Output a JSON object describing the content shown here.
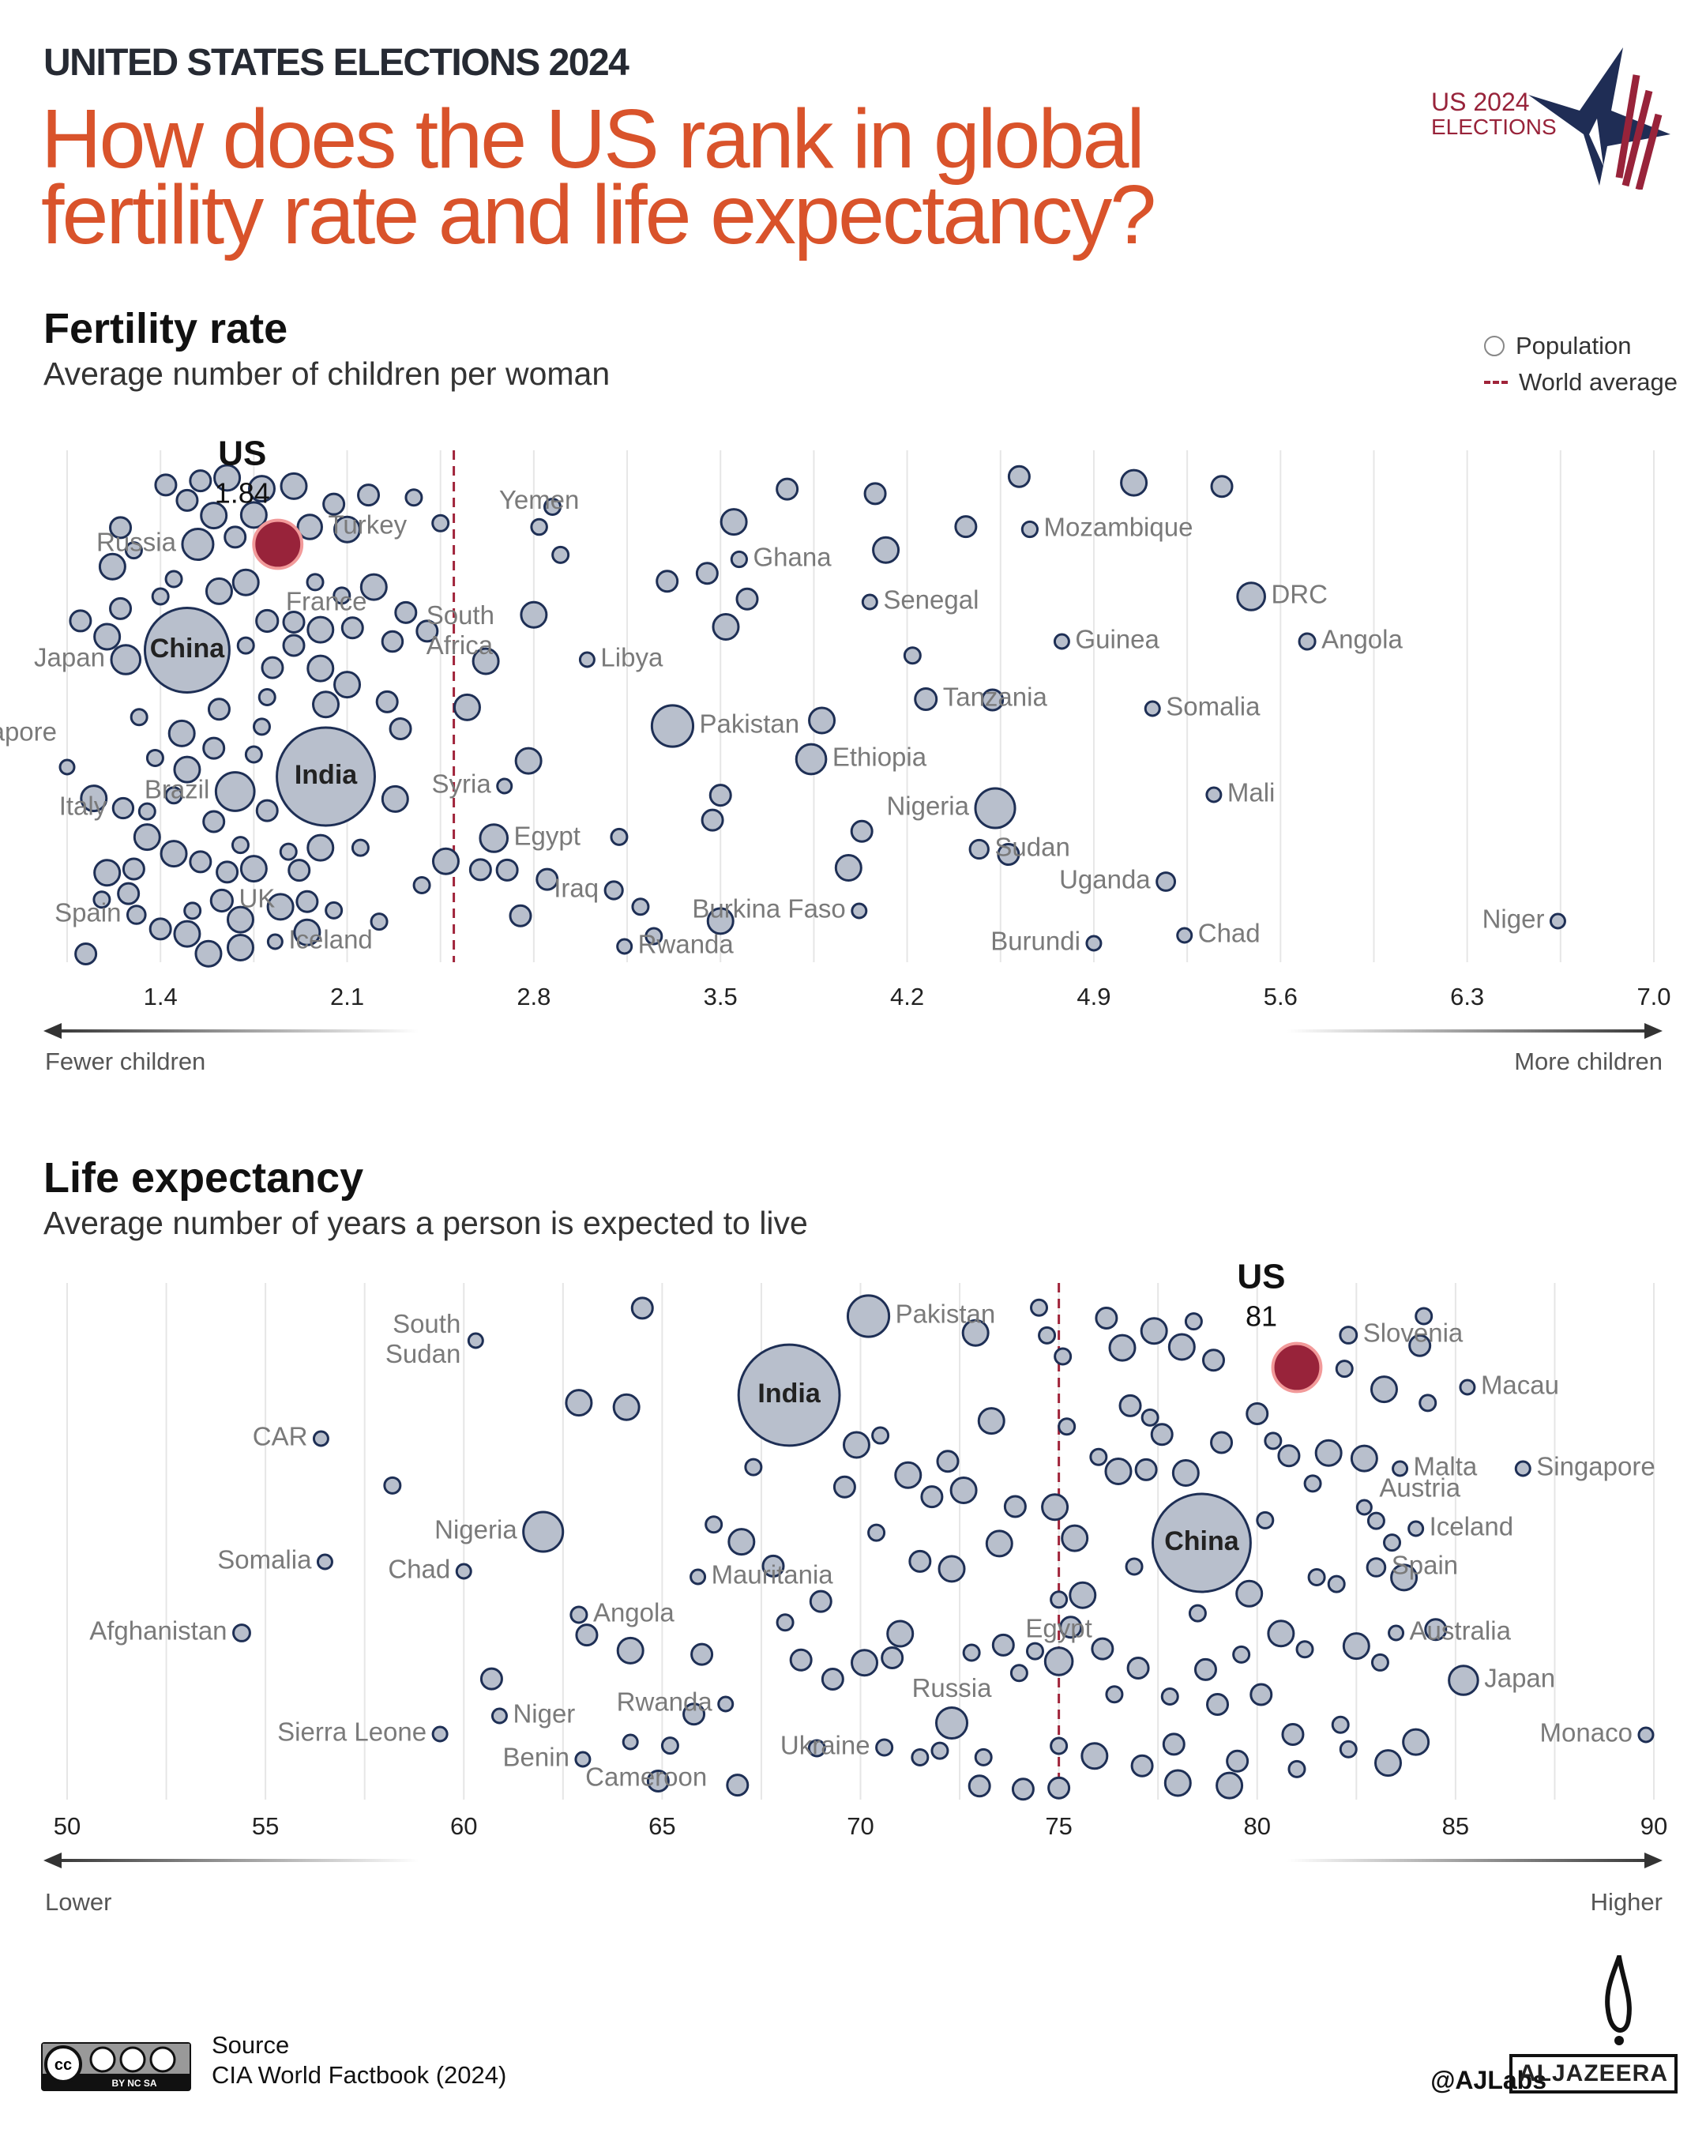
{
  "header": {
    "kicker": "UNITED STATES ELECTIONS 2024",
    "title_line1": "How does the US rank in global",
    "title_line2": "fertility rate and life expectancy?",
    "logo_text_line1": "US 2024",
    "logo_text_line2": "ELECTIONS"
  },
  "legend": {
    "population": "Population",
    "world_average": "World average"
  },
  "colors": {
    "title": "#d9532b",
    "dot_fill": "#b8bfcc",
    "dot_stroke": "#1e2f55",
    "us_fill": "#98233a",
    "world_average": "#a0243a"
  },
  "chart_data": [
    {
      "type": "scatter",
      "title": "Fertility rate",
      "subtitle": "Average number of children per woman",
      "x_ticks": [
        "1.4",
        "2.1",
        "2.8",
        "3.5",
        "4.2",
        "4.9",
        "5.6",
        "6.3",
        "7.0"
      ],
      "xlim": [
        1.05,
        7.0
      ],
      "world_average": 2.5,
      "axis_left_label": "Fewer children",
      "axis_right_label": "More children",
      "highlight": {
        "name": "US",
        "value": 1.84,
        "value_label": "1.84",
        "pop": 340
      },
      "labeled": [
        {
          "name": "Russia",
          "value": 1.54,
          "pop": 140
        },
        {
          "name": "Turkey",
          "value": 1.96,
          "pop": 85
        },
        {
          "name": "Yemen",
          "value": 2.82,
          "pop": 35
        },
        {
          "name": "Ghana",
          "value": 3.57,
          "pop": 34
        },
        {
          "name": "Mozambique",
          "value": 4.66,
          "pop": 34
        },
        {
          "name": "Senegal",
          "value": 4.06,
          "pop": 18
        },
        {
          "name": "DRC",
          "value": 5.49,
          "pop": 110
        },
        {
          "name": "Angola",
          "value": 5.7,
          "pop": 37
        },
        {
          "name": "Guinea",
          "value": 4.78,
          "pop": 14
        },
        {
          "name": "Libya",
          "value": 3.0,
          "pop": 7
        },
        {
          "name": "Tanzania",
          "value": 4.27,
          "pop": 67
        },
        {
          "name": "Somalia",
          "value": 5.12,
          "pop": 18
        },
        {
          "name": "Pakistan",
          "value": 3.32,
          "pop": 250
        },
        {
          "name": "Ethiopia",
          "value": 3.84,
          "pop": 130
        },
        {
          "name": "Mali",
          "value": 5.35,
          "pop": 22
        },
        {
          "name": "Nigeria",
          "value": 4.53,
          "pop": 230
        },
        {
          "name": "Sudan",
          "value": 4.47,
          "pop": 50
        },
        {
          "name": "Uganda",
          "value": 5.17,
          "pop": 48
        },
        {
          "name": "Chad",
          "value": 5.24,
          "pop": 19
        },
        {
          "name": "Burundi",
          "value": 4.9,
          "pop": 13
        },
        {
          "name": "Niger",
          "value": 6.64,
          "pop": 27
        },
        {
          "name": "Burkina Faso",
          "value": 4.02,
          "pop": 23
        },
        {
          "name": "Rwanda",
          "value": 3.14,
          "pop": 14
        },
        {
          "name": "Iraq",
          "value": 3.1,
          "pop": 45
        },
        {
          "name": "Egypt",
          "value": 2.65,
          "pop": 110
        },
        {
          "name": "Syria",
          "value": 2.69,
          "pop": 23
        },
        {
          "name": "South Africa",
          "value": 2.27,
          "pop": 60
        },
        {
          "name": "France",
          "value": 1.8,
          "pop": 68
        },
        {
          "name": "China",
          "value": 1.5,
          "pop": 1050
        },
        {
          "name": "India",
          "value": 2.02,
          "pop": 1410
        },
        {
          "name": "Japan",
          "value": 1.27,
          "pop": 123
        },
        {
          "name": "Singapore",
          "value": 1.05,
          "pop": 6
        },
        {
          "name": "Brazil",
          "value": 1.68,
          "pop": 218
        },
        {
          "name": "Italy",
          "value": 1.26,
          "pop": 59
        },
        {
          "name": "Spain",
          "value": 1.31,
          "pop": 47
        },
        {
          "name": "UK",
          "value": 1.63,
          "pop": 68
        },
        {
          "name": "Iceland",
          "value": 1.83,
          "pop": 1
        }
      ],
      "others": [
        1.1,
        1.12,
        1.15,
        1.18,
        1.2,
        1.2,
        1.22,
        1.25,
        1.25,
        1.28,
        1.3,
        1.3,
        1.32,
        1.35,
        1.35,
        1.38,
        1.4,
        1.4,
        1.42,
        1.45,
        1.45,
        1.48,
        1.5,
        1.5,
        1.52,
        1.55,
        1.55,
        1.58,
        1.6,
        1.6,
        1.62,
        1.62,
        1.65,
        1.65,
        1.68,
        1.7,
        1.7,
        1.72,
        1.72,
        1.75,
        1.75,
        1.78,
        1.78,
        1.8,
        1.8,
        1.82,
        1.85,
        1.88,
        1.9,
        1.9,
        1.92,
        1.95,
        1.95,
        1.98,
        2.0,
        2.0,
        2.02,
        2.05,
        2.05,
        2.08,
        2.1,
        2.1,
        2.12,
        2.15,
        2.18,
        2.2,
        2.22,
        2.25,
        2.28,
        2.3,
        2.32,
        2.35,
        2.38,
        2.4,
        2.45,
        2.47,
        1.6,
        1.7,
        1.9,
        2.0,
        1.5,
        1.45,
        1.75,
        2.55,
        2.6,
        2.62,
        2.7,
        2.75,
        2.78,
        2.8,
        2.85,
        2.87,
        2.9,
        3.12,
        3.2,
        3.25,
        3.3,
        3.45,
        3.47,
        3.5,
        3.5,
        3.52,
        3.55,
        3.6,
        3.75,
        3.88,
        3.98,
        4.03,
        4.08,
        4.12,
        4.22,
        4.42,
        4.52,
        4.58,
        4.62,
        5.05,
        5.38
      ]
    },
    {
      "type": "scatter",
      "title": "Life expectancy",
      "subtitle": "Average number of years a person is expected to live",
      "x_ticks": [
        "50",
        "55",
        "60",
        "65",
        "70",
        "75",
        "80",
        "85",
        "90"
      ],
      "xlim": [
        50,
        90
      ],
      "world_average": 75,
      "axis_left_label": "Lower",
      "axis_right_label": "Higher",
      "highlight": {
        "name": "US",
        "value": 81,
        "value_label": "81",
        "pop": 340
      },
      "labeled": [
        {
          "name": "Pakistan",
          "value": 70.2,
          "pop": 250
        },
        {
          "name": "Slovenia",
          "value": 82.3,
          "pop": 40
        },
        {
          "name": "Macau",
          "value": 85.3,
          "pop": 1
        },
        {
          "name": "Singapore",
          "value": 86.7,
          "pop": 6
        },
        {
          "name": "Malta",
          "value": 83.6,
          "pop": 1
        },
        {
          "name": "Austria",
          "value": 82.7,
          "pop": 9
        },
        {
          "name": "Iceland",
          "value": 84.0,
          "pop": 1
        },
        {
          "name": "China",
          "value": 78.6,
          "pop": 1410
        },
        {
          "name": "Spain",
          "value": 83.0,
          "pop": 47
        },
        {
          "name": "Australia",
          "value": 83.5,
          "pop": 27
        },
        {
          "name": "Japan",
          "value": 85.2,
          "pop": 123
        },
        {
          "name": "Monaco",
          "value": 89.8,
          "pop": 1
        },
        {
          "name": "India",
          "value": 68.2,
          "pop": 1500
        },
        {
          "name": "South Sudan",
          "value": 60.3,
          "pop": 11
        },
        {
          "name": "CAR",
          "value": 56.4,
          "pop": 5
        },
        {
          "name": "Nigeria",
          "value": 62.0,
          "pop": 230
        },
        {
          "name": "Somalia",
          "value": 56.5,
          "pop": 18
        },
        {
          "name": "Chad",
          "value": 60.0,
          "pop": 19
        },
        {
          "name": "Afghanistan",
          "value": 54.4,
          "pop": 40
        },
        {
          "name": "Mauritania",
          "value": 65.9,
          "pop": 5
        },
        {
          "name": "Angola",
          "value": 62.9,
          "pop": 37
        },
        {
          "name": "Egypt",
          "value": 75.0,
          "pop": 110
        },
        {
          "name": "Sierra Leone",
          "value": 59.4,
          "pop": 8
        },
        {
          "name": "Niger",
          "value": 60.9,
          "pop": 27
        },
        {
          "name": "Rwanda",
          "value": 66.6,
          "pop": 14
        },
        {
          "name": "Benin",
          "value": 63.0,
          "pop": 13
        },
        {
          "name": "Cameroon",
          "value": 64.2,
          "pop": 29
        },
        {
          "name": "Russia",
          "value": 72.3,
          "pop": 140
        },
        {
          "name": "Ukraine",
          "value": 70.6,
          "pop": 37
        }
      ],
      "others": [
        58.2,
        60.7,
        62.9,
        63.1,
        64.2,
        64.5,
        64.9,
        65.8,
        65.2,
        64.1,
        66.3,
        66.9,
        67.3,
        67.8,
        68.1,
        68.5,
        68.9,
        69.3,
        69.6,
        69.9,
        70.1,
        70.4,
        70.5,
        70.8,
        71.2,
        71.5,
        71.8,
        72.0,
        72.3,
        72.6,
        72.9,
        73.1,
        73.3,
        73.6,
        73.9,
        74.1,
        74.4,
        74.7,
        74.9,
        75.0,
        75.1,
        75.3,
        75.6,
        75.9,
        76.0,
        76.2,
        76.4,
        76.6,
        76.8,
        77.0,
        77.2,
        77.4,
        77.6,
        77.8,
        78.0,
        78.2,
        78.4,
        78.7,
        78.9,
        79.1,
        79.3,
        79.6,
        79.8,
        80.0,
        80.2,
        80.4,
        80.6,
        80.9,
        81.2,
        81.5,
        81.8,
        82.0,
        82.2,
        82.5,
        82.7,
        83.0,
        83.2,
        83.4,
        83.7,
        84.0,
        84.2,
        84.5,
        76.5,
        77.1,
        73.5,
        75.4,
        76.9,
        79.0,
        81.0,
        82.3,
        83.1,
        84.1,
        78.1,
        72.8,
        71.0,
        66.0,
        67.0,
        69.0,
        71.5,
        72.2,
        73.0,
        74.0,
        74.5,
        75.0,
        75.0,
        75.2,
        76.1,
        77.3,
        77.9,
        78.5,
        79.5,
        80.1,
        80.8,
        81.4,
        82.1,
        83.3,
        84.3
      ]
    }
  ],
  "footer": {
    "source_label": "Source",
    "source_text": "CIA World Factbook (2024)",
    "license": "BY NC SA",
    "handle": "@AJLabs",
    "brand": "ALJAZEERA"
  }
}
